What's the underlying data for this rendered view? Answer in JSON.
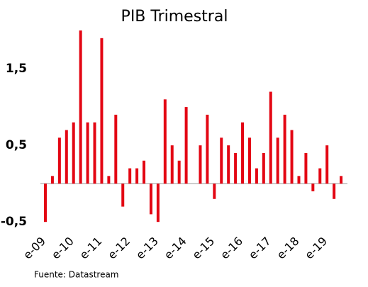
{
  "chart_data": {
    "type": "bar",
    "title": "PIB Trimestral",
    "source": "Fuente: Datastream",
    "categories": [
      "e-09",
      null,
      null,
      null,
      "e-10",
      null,
      null,
      null,
      "e-11",
      null,
      null,
      null,
      "e-12",
      null,
      null,
      null,
      "e-13",
      null,
      null,
      null,
      "e-14",
      null,
      null,
      null,
      "e-15",
      null,
      null,
      null,
      "e-16",
      null,
      null,
      null,
      "e-17",
      null,
      null,
      null,
      "e-18",
      null,
      null,
      null,
      "e-19",
      null,
      null
    ],
    "values": [
      -0.5,
      0.1,
      0.6,
      0.7,
      0.8,
      2.0,
      0.8,
      0.8,
      1.9,
      0.1,
      0.9,
      -0.3,
      0.2,
      0.2,
      0.3,
      -0.4,
      -0.5,
      1.1,
      0.5,
      0.3,
      1.0,
      0,
      0.5,
      0.9,
      -0.2,
      0.6,
      0.5,
      0.4,
      0.8,
      0.6,
      0.2,
      0.4,
      1.2,
      0.6,
      0.9,
      0.7,
      0.1,
      0.4,
      -0.1,
      0.2,
      0.5,
      -0.2,
      0.1
    ],
    "color": "#e30613",
    "ylim": [
      -0.6,
      2.0
    ],
    "yticks": [
      {
        "value": -0.5,
        "label": "-0,5"
      },
      {
        "value": 0.5,
        "label": "0,5"
      },
      {
        "value": 1.5,
        "label": "1,5"
      }
    ],
    "grid": false
  }
}
